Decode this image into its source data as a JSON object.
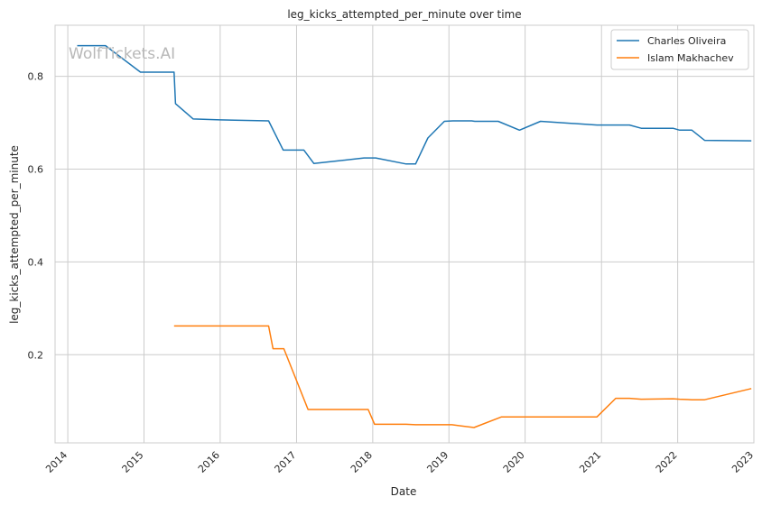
{
  "chart_data": {
    "type": "line",
    "title": "leg_kicks_attempted_per_minute over time",
    "xlabel": "Date",
    "ylabel": "leg_kicks_attempted_per_minute",
    "watermark": "WolfTickets.AI",
    "x_ticks": [
      "2014",
      "2015",
      "2016",
      "2017",
      "2018",
      "2019",
      "2020",
      "2021",
      "2022",
      "2023"
    ],
    "y_ticks": [
      "0.2",
      "0.4",
      "0.6",
      "0.8"
    ],
    "xlim": [
      "2013-11-01",
      "2023-01-01"
    ],
    "ylim": [
      0.01,
      0.91
    ],
    "grid": true,
    "legend_position": "top-right",
    "series": [
      {
        "name": "Charles Oliveira",
        "color": "#1f77b4",
        "points": [
          [
            "2014-02-15",
            0.866
          ],
          [
            "2014-07-01",
            0.866
          ],
          [
            "2014-12-15",
            0.809
          ],
          [
            "2015-05-25",
            0.809
          ],
          [
            "2015-06-01",
            0.741
          ],
          [
            "2015-08-25",
            0.708
          ],
          [
            "2015-12-31",
            0.706
          ],
          [
            "2016-08-20",
            0.704
          ],
          [
            "2016-10-29",
            0.641
          ],
          [
            "2017-02-05",
            0.641
          ],
          [
            "2017-03-25",
            0.612
          ],
          [
            "2017-11-20",
            0.624
          ],
          [
            "2018-01-15",
            0.624
          ],
          [
            "2018-06-10",
            0.611
          ],
          [
            "2018-07-25",
            0.611
          ],
          [
            "2018-09-22",
            0.667
          ],
          [
            "2018-12-10",
            0.703
          ],
          [
            "2019-01-20",
            0.704
          ],
          [
            "2019-04-20",
            0.704
          ],
          [
            "2019-05-05",
            0.703
          ],
          [
            "2019-08-25",
            0.703
          ],
          [
            "2019-12-05",
            0.684
          ],
          [
            "2020-03-15",
            0.703
          ],
          [
            "2020-12-10",
            0.695
          ],
          [
            "2021-05-15",
            0.695
          ],
          [
            "2021-07-10",
            0.688
          ],
          [
            "2021-12-10",
            0.688
          ],
          [
            "2022-01-10",
            0.684
          ],
          [
            "2022-03-10",
            0.684
          ],
          [
            "2022-05-10",
            0.662
          ],
          [
            "2022-12-20",
            0.661
          ]
        ]
      },
      {
        "name": "Islam Makhachev",
        "color": "#ff7f0e",
        "points": [
          [
            "2015-05-25",
            0.262
          ],
          [
            "2016-08-20",
            0.262
          ],
          [
            "2016-09-10",
            0.213
          ],
          [
            "2016-11-01",
            0.213
          ],
          [
            "2017-02-25",
            0.082
          ],
          [
            "2017-12-10",
            0.082
          ],
          [
            "2018-01-10",
            0.05
          ],
          [
            "2018-06-10",
            0.05
          ],
          [
            "2018-07-25",
            0.049
          ],
          [
            "2019-01-15",
            0.049
          ],
          [
            "2019-05-01",
            0.043
          ],
          [
            "2019-09-10",
            0.066
          ],
          [
            "2020-12-10",
            0.066
          ],
          [
            "2021-03-10",
            0.106
          ],
          [
            "2021-05-15",
            0.106
          ],
          [
            "2021-07-10",
            0.104
          ],
          [
            "2021-12-10",
            0.105
          ],
          [
            "2022-01-10",
            0.104
          ],
          [
            "2022-03-10",
            0.103
          ],
          [
            "2022-05-10",
            0.103
          ],
          [
            "2022-12-20",
            0.127
          ]
        ]
      }
    ]
  }
}
